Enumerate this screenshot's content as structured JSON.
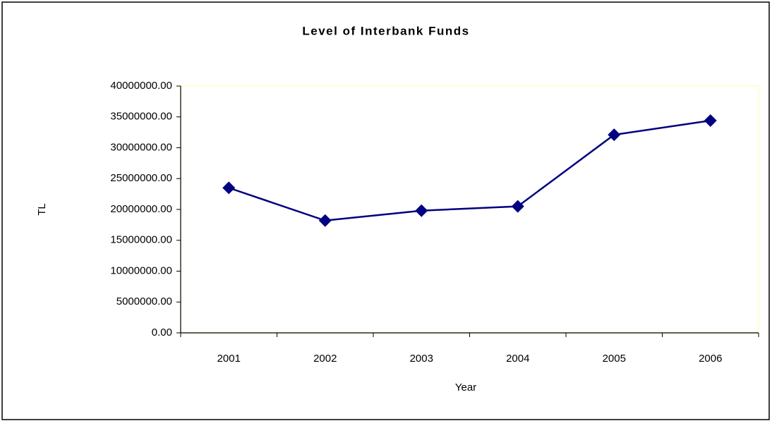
{
  "chart_data": {
    "type": "line",
    "title": "Level of Interbank Funds",
    "x_label": "Year",
    "y_label": "TL",
    "categories": [
      "2001",
      "2002",
      "2003",
      "2004",
      "2005",
      "2006"
    ],
    "series": [
      {
        "name": "Level of Interbank Funds",
        "color": "#000080",
        "values": [
          23500000,
          18200000,
          19800000,
          20500000,
          32100000,
          34400000
        ]
      }
    ],
    "ylim": [
      0,
      40000000
    ],
    "yticks": [
      {
        "value": 0,
        "label": "0.00"
      },
      {
        "value": 5000000,
        "label": "5000000.00"
      },
      {
        "value": 10000000,
        "label": "10000000.00"
      },
      {
        "value": 15000000,
        "label": "15000000.00"
      },
      {
        "value": 20000000,
        "label": "20000000.00"
      },
      {
        "value": 25000000,
        "label": "25000000.00"
      },
      {
        "value": 30000000,
        "label": "30000000.00"
      },
      {
        "value": 35000000,
        "label": "35000000.00"
      },
      {
        "value": 40000000,
        "label": "40000000.00"
      }
    ],
    "grid": false
  }
}
